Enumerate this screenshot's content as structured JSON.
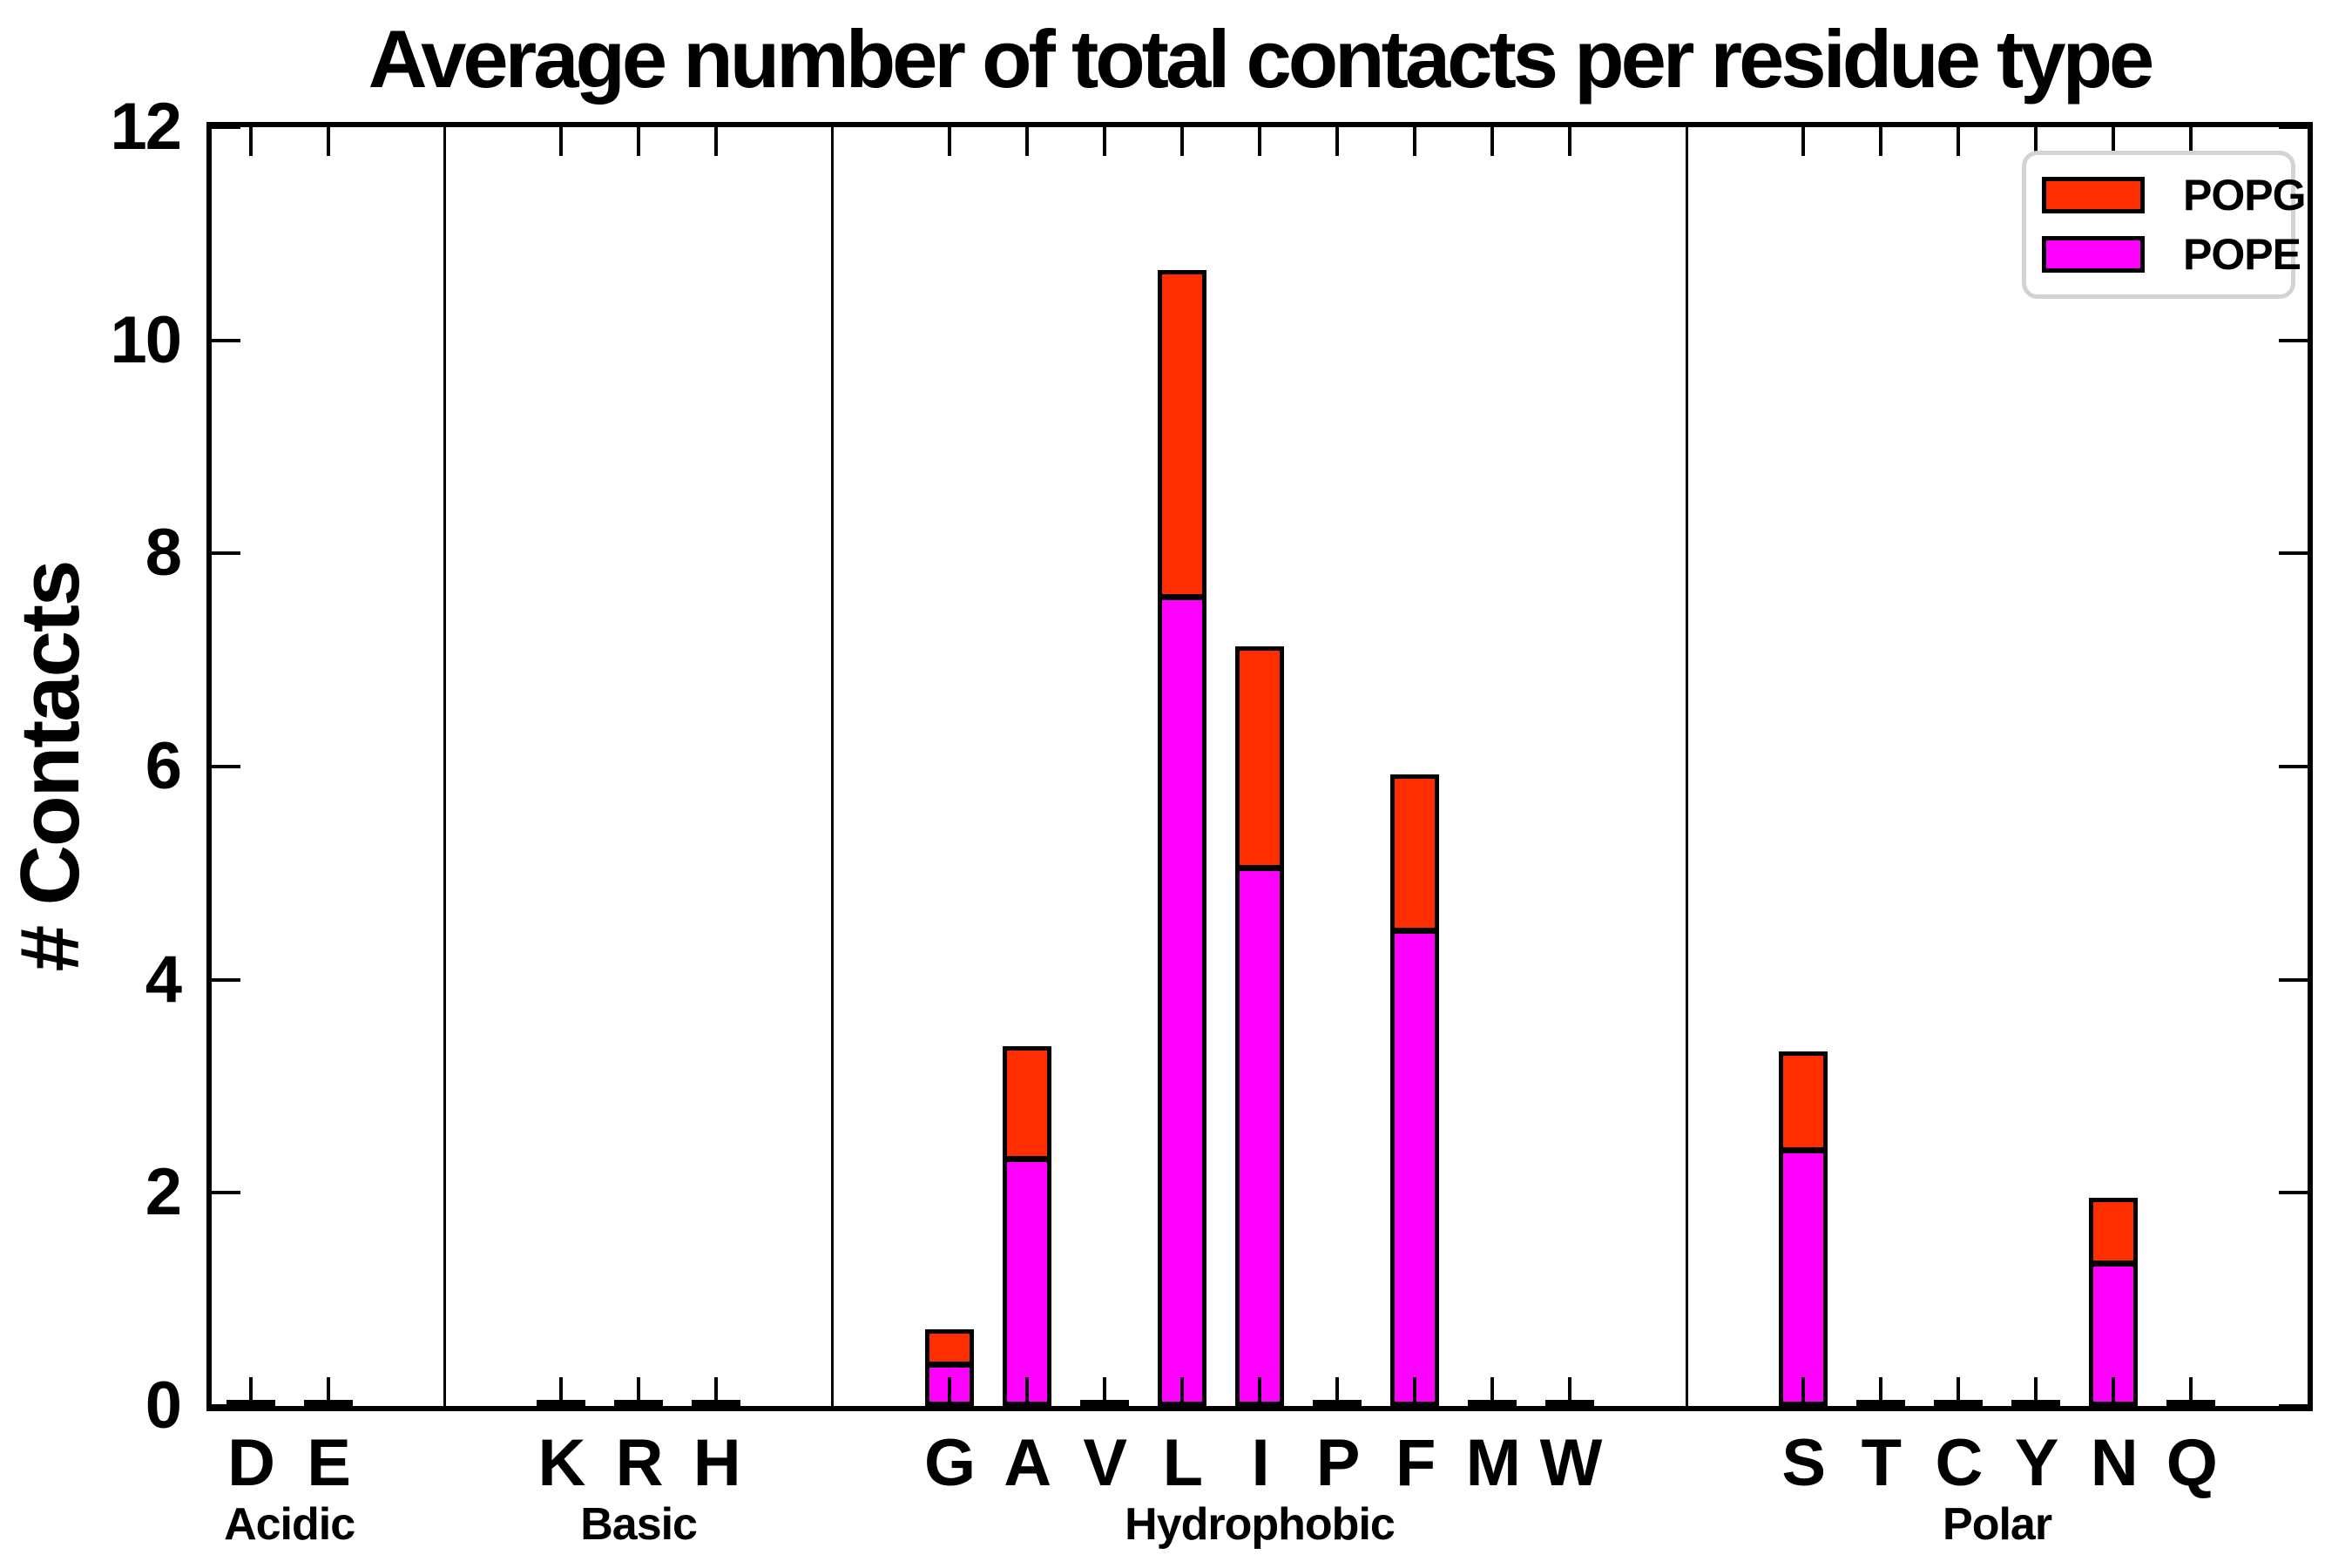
{
  "title": "Average number of total contacts per residue type",
  "ylabel": "# Contacts",
  "legend": [
    {
      "label": "POPG",
      "color": "#ff2e00"
    },
    {
      "label": "POPE",
      "color": "#ff00ff"
    }
  ],
  "colors": {
    "popg_red": "#ff2e00",
    "pope_magenta": "#ff00ff",
    "axis_black": "#000000",
    "legend_border_gray": "#d3d3d3",
    "background": "#ffffff"
  },
  "chart_data": {
    "type": "bar",
    "stacked": true,
    "title": "Average number of total contacts per residue type",
    "xlabel": "",
    "ylabel": "# Contacts",
    "ylim": [
      0,
      12
    ],
    "yticks": [
      0,
      2,
      4,
      6,
      8,
      10,
      12
    ],
    "grid": false,
    "legend_position": "upper right",
    "tick_direction": "in",
    "categories": [
      "D",
      "E",
      "K",
      "R",
      "H",
      "G",
      "A",
      "V",
      "L",
      "I",
      "P",
      "F",
      "M",
      "W",
      "S",
      "T",
      "C",
      "Y",
      "N",
      "Q"
    ],
    "groups": [
      {
        "label": "Acidic",
        "residues": [
          "D",
          "E"
        ]
      },
      {
        "label": "Basic",
        "residues": [
          "K",
          "R",
          "H"
        ]
      },
      {
        "label": "Hydrophobic",
        "residues": [
          "G",
          "A",
          "V",
          "L",
          "I",
          "P",
          "F",
          "M",
          "W"
        ]
      },
      {
        "label": "Polar",
        "residues": [
          "S",
          "T",
          "C",
          "Y",
          "N",
          "Q"
        ]
      }
    ],
    "series": [
      {
        "name": "POPE",
        "color": "#ff00ff",
        "values": [
          0.02,
          0.02,
          0.03,
          0.03,
          0.02,
          0.4,
          2.33,
          0.03,
          7.6,
          5.06,
          0.03,
          4.47,
          0.03,
          0.03,
          2.41,
          0.03,
          0.02,
          0.03,
          1.35,
          0.02
        ]
      },
      {
        "name": "POPG",
        "color": "#ff2e00",
        "values": [
          0.01,
          0.01,
          0.01,
          0.01,
          0.01,
          0.32,
          1.05,
          0.01,
          3.06,
          2.07,
          0.01,
          1.46,
          0.01,
          0.01,
          0.92,
          0.01,
          0.01,
          0.01,
          0.6,
          0.01
        ]
      }
    ],
    "stacked_totals": {
      "G": 0.72,
      "A": 3.38,
      "L": 10.66,
      "I": 7.13,
      "F": 5.93,
      "S": 3.33,
      "N": 1.95
    }
  }
}
